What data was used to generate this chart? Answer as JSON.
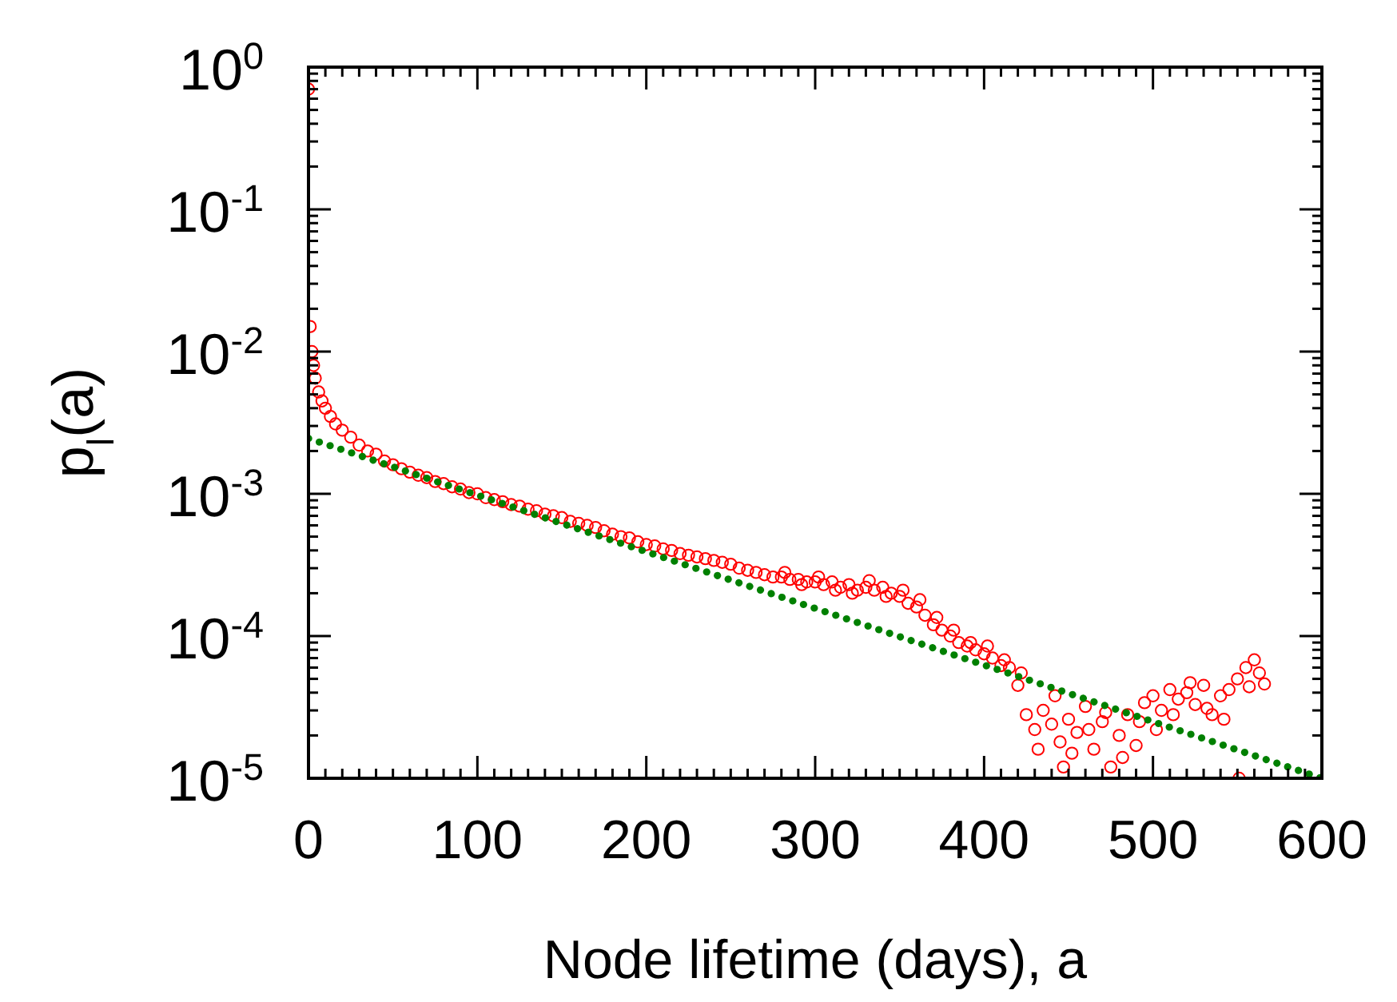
{
  "chart_data": {
    "type": "scatter",
    "xlabel": "Node lifetime (days), a",
    "ylabel": "p$_{l}$(a)",
    "log": "y",
    "marker": "circle",
    "xlim": [
      0,
      600
    ],
    "xticks": [
      0,
      100,
      200,
      300,
      400,
      500,
      600
    ],
    "ylim": [
      1e-05,
      1
    ],
    "yticks": [
      {
        "value": 1e-05,
        "label": "10$^{-5}$"
      },
      {
        "value": 0.0001,
        "label": "10$^{-4}$"
      },
      {
        "value": 0.001,
        "label": "10$^{-3}$"
      },
      {
        "value": 0.01,
        "label": "10$^{-2}$"
      },
      {
        "value": 0.1,
        "label": "10$^{-1}$"
      },
      {
        "value": 1,
        "label": "10$^{0}$"
      }
    ],
    "series": [
      {
        "color": "#ff0000",
        "x": [
          0,
          1,
          2,
          3,
          4,
          6,
          8,
          10,
          13,
          16,
          20,
          25,
          30,
          35,
          40,
          45,
          50,
          55,
          60,
          65,
          70,
          75,
          80,
          85,
          90,
          95,
          100,
          105,
          110,
          115,
          120,
          125,
          130,
          135,
          140,
          145,
          150,
          155,
          160,
          165,
          170,
          175,
          180,
          185,
          190,
          195,
          200,
          205,
          210,
          215,
          220,
          225,
          230,
          235,
          240,
          245,
          250,
          255,
          260,
          265,
          270,
          275,
          280,
          282,
          285,
          290,
          292,
          295,
          300,
          302,
          305,
          310,
          312,
          315,
          320,
          322,
          325,
          330,
          332,
          335,
          340,
          342,
          345,
          350,
          352,
          355,
          360,
          362,
          365,
          370,
          372,
          375,
          380,
          382,
          385,
          390,
          392,
          395,
          400,
          402,
          405,
          410,
          412,
          415,
          420,
          422,
          425,
          430,
          432,
          435,
          440,
          442,
          445,
          447,
          450,
          452,
          455,
          460,
          462,
          465,
          470,
          472,
          475,
          480,
          482,
          485,
          490,
          492,
          495,
          500,
          502,
          505,
          510,
          512,
          515,
          520,
          522,
          525,
          530,
          532,
          535,
          540,
          542,
          545,
          550,
          551,
          555,
          557,
          560,
          563,
          566
        ],
        "values": [
          0.7,
          0.015,
          0.01,
          0.008,
          0.0065,
          0.0052,
          0.0045,
          0.004,
          0.0035,
          0.0031,
          0.0028,
          0.0025,
          0.0022,
          0.002,
          0.0019,
          0.0017,
          0.0016,
          0.0015,
          0.00142,
          0.00135,
          0.0013,
          0.00122,
          0.00118,
          0.00112,
          0.00108,
          0.00102,
          0.001,
          0.00094,
          0.00091,
          0.00088,
          0.00084,
          0.00082,
          0.00078,
          0.00076,
          0.00072,
          0.0007,
          0.00068,
          0.00064,
          0.00062,
          0.0006,
          0.00058,
          0.00055,
          0.00052,
          0.0005,
          0.00049,
          0.00046,
          0.00044,
          0.00043,
          0.00041,
          0.0004,
          0.00038,
          0.00037,
          0.00036,
          0.00035,
          0.00034,
          0.00033,
          0.00032,
          0.0003,
          0.00029,
          0.00028,
          0.00027,
          0.00026,
          0.00026,
          0.00028,
          0.00025,
          0.00025,
          0.00023,
          0.00024,
          0.00024,
          0.00026,
          0.00023,
          0.00024,
          0.00021,
          0.00022,
          0.00023,
          0.0002,
          0.00021,
          0.00022,
          0.000245,
          0.00021,
          0.00022,
          0.00019,
          0.0002,
          0.00019,
          0.00021,
          0.00017,
          0.00016,
          0.00018,
          0.00014,
          0.00012,
          0.000135,
          0.00011,
          0.0001,
          0.00011,
          9e-05,
          8.5e-05,
          9e-05,
          8e-05,
          7.5e-05,
          8.5e-05,
          7e-05,
          6.2e-05,
          6.8e-05,
          6e-05,
          4.5e-05,
          5.5e-05,
          2.8e-05,
          2.2e-05,
          1.6e-05,
          3e-05,
          2.4e-05,
          3.8e-05,
          1.8e-05,
          1.2e-05,
          2.6e-05,
          1.5e-05,
          2.1e-05,
          3.2e-05,
          2.2e-05,
          1.6e-05,
          2.5e-05,
          2.9e-05,
          1.2e-05,
          2e-05,
          1.4e-05,
          2.8e-05,
          1.7e-05,
          2.5e-05,
          3.4e-05,
          3.8e-05,
          2.2e-05,
          3e-05,
          4.2e-05,
          2.8e-05,
          3.6e-05,
          4e-05,
          4.7e-05,
          3.3e-05,
          4.5e-05,
          3.1e-05,
          2.8e-05,
          3.8e-05,
          2.6e-05,
          4.2e-05,
          5e-05,
          1e-05,
          6e-05,
          4.4e-05,
          6.8e-05,
          5.5e-05,
          4.6e-05
        ]
      },
      {
        "type": "line",
        "color": "#008000",
        "line_style": "dotted",
        "marker": "none",
        "x": [
          0,
          600
        ],
        "values": [
          0.00245,
          1e-05
        ]
      }
    ]
  }
}
